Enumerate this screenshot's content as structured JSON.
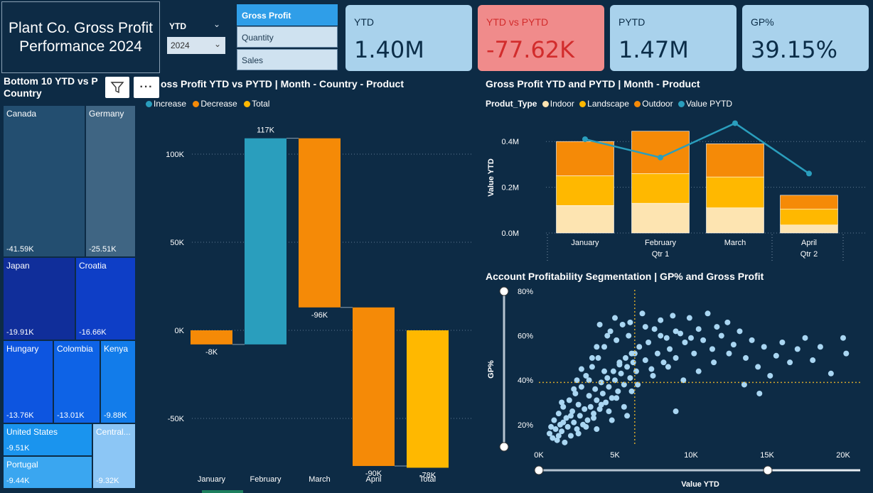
{
  "report": {
    "title": "Plant Co. Gross Profit Performance 2024"
  },
  "period_filter": {
    "label": "YTD",
    "selected": "2024"
  },
  "measure_slicer": {
    "items": [
      "Gross Profit",
      "Quantity",
      "Sales"
    ],
    "selected": "Gross Profit"
  },
  "kpis": [
    {
      "label": "YTD",
      "value": "1.40M"
    },
    {
      "label": "YTD vs PYTD",
      "value": "-77.62K"
    },
    {
      "label": "PYTD",
      "value": "1.47M"
    },
    {
      "label": "GP%",
      "value": "39.15%"
    }
  ],
  "treemap": {
    "title": "Bottom 10 YTD vs PYTD | Country",
    "title_visible": "Bottom 10 YTD vs P",
    "title_line2": "Country",
    "cells": [
      {
        "name": "Canada",
        "value": "-41.59K"
      },
      {
        "name": "Germany",
        "value": "-25.51K"
      },
      {
        "name": "Japan",
        "value": "-19.91K"
      },
      {
        "name": "Croatia",
        "value": "-16.66K"
      },
      {
        "name": "Hungary",
        "value": "-13.76K"
      },
      {
        "name": "Colombia",
        "value": "-13.01K"
      },
      {
        "name": "Kenya",
        "value": "-9.88K"
      },
      {
        "name": "United States",
        "value": "-9.51K"
      },
      {
        "name": "Central...",
        "value": "-9.32K"
      },
      {
        "name": "Portugal",
        "value": "-9.44K"
      }
    ]
  },
  "waterfall": {
    "title_visible": "oss Profit YTD vs PYTD | Month - Country - Product",
    "legend": [
      {
        "label": "Increase",
        "color": "#2a9ebd"
      },
      {
        "label": "Decrease",
        "color": "#f58a07"
      },
      {
        "label": "Total",
        "color": "#ffb800"
      }
    ],
    "y_ticks": [
      "100K",
      "50K",
      "0K",
      "-50K"
    ]
  },
  "combo": {
    "title": "Gross Profit YTD and PYTD | Month - Product",
    "legend_title": "Produt_Type",
    "legend": [
      {
        "label": "Indoor",
        "color": "#fde4b1"
      },
      {
        "label": "Landscape",
        "color": "#ffb800"
      },
      {
        "label": "Outdoor",
        "color": "#f58a07"
      },
      {
        "label": "Value PYTD",
        "color": "#2a9ebd"
      }
    ],
    "y_label": "Value YTD",
    "y_ticks": [
      "0.4M",
      "0.2M",
      "0.0M"
    ],
    "quarters": [
      "Qtr 1",
      "Qtr 2"
    ]
  },
  "scatter": {
    "title": "Account Profitability Segmentation | GP% and Gross Profit",
    "y_label": "GP%",
    "x_label": "Value YTD",
    "y_ticks": [
      "80%",
      "60%",
      "40%",
      "20%"
    ],
    "x_ticks": [
      "0K",
      "5K",
      "10K",
      "15K",
      "20K"
    ]
  },
  "icons": {
    "filter": "filter-icon",
    "more": "more-options-icon",
    "chevron": "chevron-down-icon"
  },
  "chart_data": [
    {
      "type": "bar",
      "subtype": "waterfall",
      "categories": [
        "January",
        "February",
        "March",
        "April",
        "Total"
      ],
      "values": [
        -8,
        117,
        -96,
        -90,
        -78
      ],
      "data_labels": [
        "-8K",
        "117K",
        "-96K",
        "-90K",
        "-78K"
      ],
      "kinds": [
        "decrease",
        "increase",
        "decrease",
        "decrease",
        "total"
      ],
      "unit": "K",
      "ylim": [
        -75,
        125
      ],
      "grid": true
    },
    {
      "type": "bar",
      "subtype": "stacked-bar-with-line",
      "categories": [
        "January",
        "February",
        "March",
        "April"
      ],
      "quarter_groups": [
        {
          "label": "Qtr 1",
          "months": [
            "January",
            "February",
            "March"
          ]
        },
        {
          "label": "Qtr 2",
          "months": [
            "April"
          ]
        }
      ],
      "series": [
        {
          "name": "Indoor",
          "values": [
            0.12,
            0.13,
            0.11,
            0.035
          ]
        },
        {
          "name": "Landscape",
          "values": [
            0.13,
            0.13,
            0.135,
            0.07
          ]
        },
        {
          "name": "Outdoor",
          "values": [
            0.15,
            0.185,
            0.145,
            0.06
          ]
        },
        {
          "name": "Value PYTD",
          "kind": "line",
          "values": [
            0.41,
            0.33,
            0.48,
            0.26
          ]
        }
      ],
      "ylim": [
        0,
        0.5
      ],
      "grid": true
    },
    {
      "type": "scatter",
      "xlim": [
        0,
        21000
      ],
      "ylim": [
        10,
        80
      ],
      "reference_lines": {
        "x": 6300,
        "y": 39
      },
      "points": [
        [
          700,
          16
        ],
        [
          800,
          19
        ],
        [
          900,
          14
        ],
        [
          1000,
          22
        ],
        [
          1100,
          18
        ],
        [
          1200,
          13
        ],
        [
          1300,
          25
        ],
        [
          1400,
          20
        ],
        [
          1500,
          17
        ],
        [
          1600,
          28
        ],
        [
          1700,
          12
        ],
        [
          1800,
          23
        ],
        [
          1900,
          19
        ],
        [
          2000,
          31
        ],
        [
          2100,
          15
        ],
        [
          2200,
          26
        ],
        [
          2300,
          21
        ],
        [
          2400,
          34
        ],
        [
          2500,
          18
        ],
        [
          2600,
          29
        ],
        [
          2700,
          24
        ],
        [
          2800,
          37
        ],
        [
          2900,
          20
        ],
        [
          3000,
          27
        ],
        [
          3100,
          42
        ],
        [
          3200,
          22
        ],
        [
          3300,
          33
        ],
        [
          3400,
          28
        ],
        [
          3500,
          46
        ],
        [
          3600,
          25
        ],
        [
          3700,
          36
        ],
        [
          3800,
          31
        ],
        [
          3900,
          50
        ],
        [
          4000,
          27
        ],
        [
          4100,
          39
        ],
        [
          4200,
          34
        ],
        [
          4300,
          55
        ],
        [
          4400,
          30
        ],
        [
          4500,
          41
        ],
        [
          4600,
          37
        ],
        [
          4700,
          62
        ],
        [
          4800,
          32
        ],
        [
          4900,
          44
        ],
        [
          5000,
          40
        ],
        [
          5100,
          58
        ],
        [
          5200,
          35
        ],
        [
          5300,
          47
        ],
        [
          5400,
          43
        ],
        [
          5500,
          65
        ],
        [
          5600,
          38
        ],
        [
          5700,
          50
        ],
        [
          5800,
          46
        ],
        [
          5900,
          60
        ],
        [
          6000,
          41
        ],
        [
          6100,
          52
        ],
        [
          6200,
          48
        ],
        [
          6400,
          44
        ],
        [
          6600,
          55
        ],
        [
          6800,
          70
        ],
        [
          7000,
          49
        ],
        [
          7200,
          57
        ],
        [
          7400,
          45
        ],
        [
          7600,
          63
        ],
        [
          7800,
          52
        ],
        [
          8000,
          67
        ],
        [
          8200,
          48
        ],
        [
          8400,
          59
        ],
        [
          8600,
          54
        ],
        [
          8800,
          69
        ],
        [
          9000,
          50
        ],
        [
          9300,
          61
        ],
        [
          9600,
          57
        ],
        [
          9900,
          68
        ],
        [
          10200,
          52
        ],
        [
          10500,
          63
        ],
        [
          10800,
          58
        ],
        [
          11100,
          70
        ],
        [
          11400,
          54
        ],
        [
          11700,
          64
        ],
        [
          12000,
          60
        ],
        [
          12400,
          66
        ],
        [
          12800,
          56
        ],
        [
          13200,
          62
        ],
        [
          13600,
          50
        ],
        [
          14000,
          58
        ],
        [
          14400,
          46
        ],
        [
          14800,
          55
        ],
        [
          15200,
          42
        ],
        [
          15600,
          51
        ],
        [
          16000,
          57
        ],
        [
          16500,
          48
        ],
        [
          17000,
          54
        ],
        [
          17500,
          59
        ],
        [
          18000,
          49
        ],
        [
          18500,
          55
        ],
        [
          19200,
          43
        ],
        [
          20000,
          59
        ],
        [
          20200,
          52
        ],
        [
          1300,
          15
        ],
        [
          1600,
          21
        ],
        [
          2100,
          24
        ],
        [
          2600,
          16
        ],
        [
          3100,
          19
        ],
        [
          3600,
          23
        ],
        [
          4100,
          29
        ],
        [
          4600,
          26
        ],
        [
          5100,
          32
        ],
        [
          5600,
          28
        ],
        [
          6100,
          35
        ],
        [
          2300,
          36
        ],
        [
          3300,
          40
        ],
        [
          4300,
          44
        ],
        [
          5300,
          48
        ],
        [
          6300,
          52
        ],
        [
          3800,
          18
        ],
        [
          4800,
          22
        ],
        [
          5800,
          24
        ],
        [
          2800,
          45
        ],
        [
          3800,
          55
        ],
        [
          4500,
          60
        ],
        [
          6500,
          38
        ],
        [
          7500,
          42
        ],
        [
          8500,
          46
        ],
        [
          9500,
          40
        ],
        [
          10500,
          44
        ],
        [
          11500,
          48
        ],
        [
          12500,
          52
        ],
        [
          13500,
          38
        ],
        [
          14500,
          34
        ],
        [
          9000,
          26
        ],
        [
          1500,
          30
        ],
        [
          2500,
          40
        ],
        [
          3500,
          50
        ],
        [
          4000,
          65
        ],
        [
          5000,
          68
        ],
        [
          6000,
          66
        ],
        [
          7000,
          64
        ],
        [
          8000,
          60
        ],
        [
          9000,
          62
        ],
        [
          10000,
          59
        ]
      ],
      "x_label": "Value YTD",
      "y_label": "GP%"
    }
  ]
}
